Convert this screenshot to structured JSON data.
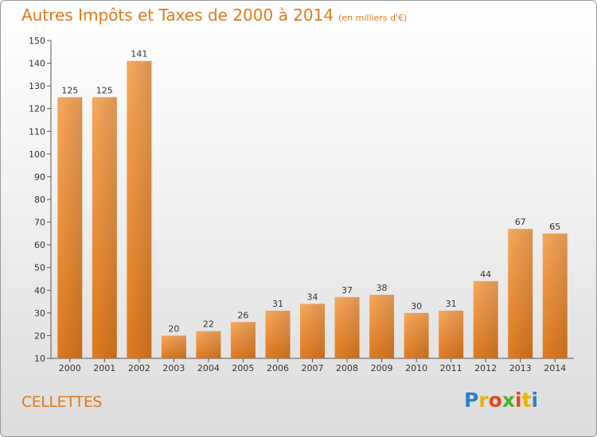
{
  "chart_data": {
    "type": "bar",
    "title": "Autres Impôts et Taxes de 2000 à 2014",
    "unit": "(en milliers d'€)",
    "categories": [
      "2000",
      "2001",
      "2002",
      "2003",
      "2004",
      "2005",
      "2006",
      "2007",
      "2008",
      "2009",
      "2010",
      "2011",
      "2012",
      "2013",
      "2014"
    ],
    "values": [
      125,
      125,
      141,
      20,
      22,
      26,
      31,
      34,
      37,
      38,
      30,
      31,
      44,
      67,
      65
    ],
    "ylim": [
      10,
      150
    ],
    "yticks": [
      10,
      20,
      30,
      40,
      50,
      60,
      70,
      80,
      90,
      100,
      110,
      120,
      130,
      140,
      150
    ],
    "grid": false,
    "colors": {
      "bar_light": "#f6a65a",
      "bar_dark": "#e07e22",
      "title": "#e07a1a"
    }
  },
  "commune": "CELLETTES",
  "logo": {
    "text": "Proxiti",
    "letters": [
      {
        "ch": "P",
        "color": "#2f7fc4"
      },
      {
        "ch": "r",
        "color": "#e9b100"
      },
      {
        "ch": "o",
        "color": "#e2491b"
      },
      {
        "ch": "x",
        "color": "#4fae2f"
      },
      {
        "ch": "i",
        "color": "#e2491b"
      },
      {
        "ch": "t",
        "color": "#e9b100"
      },
      {
        "ch": "i",
        "color": "#2f7fc4"
      }
    ]
  }
}
